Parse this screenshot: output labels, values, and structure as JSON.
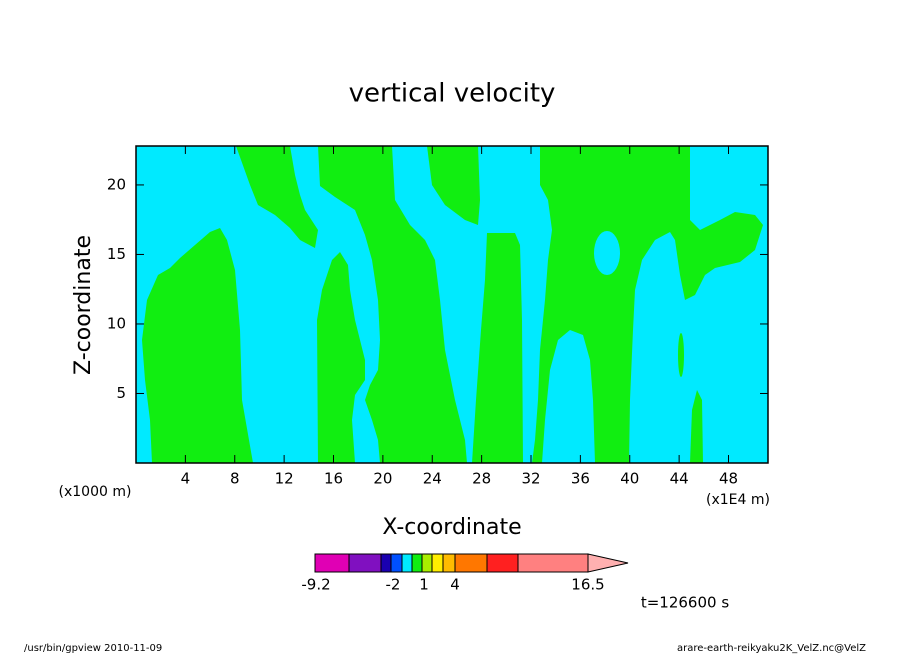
{
  "chart_data": {
    "type": "contour",
    "title": "vertical velocity",
    "xlabel": "X-coordinate",
    "ylabel": "Z-coordinate",
    "x_unit": "(x1000 m)",
    "x_unit_right": "(x1E4 m)",
    "xlim": [
      0,
      51.2
    ],
    "xticks": [
      4,
      8,
      12,
      16,
      20,
      24,
      28,
      32,
      36,
      40,
      44,
      48
    ],
    "ylim": [
      0,
      22.8
    ],
    "yticks": [
      5,
      10,
      15,
      20
    ],
    "field_colors": [
      "#00eaff",
      "#11ee11"
    ],
    "colorbar_colors": [
      "#e000b4",
      "#8010c0",
      "#1a00b0",
      "#0050ff",
      "#00eaff",
      "#11ee11",
      "#aaee00",
      "#ffee00",
      "#ffbb00",
      "#ff7700",
      "#ff2020",
      "#ff8080",
      "#ffb0b0"
    ],
    "colorbar_ticks": [
      -9.2,
      -2,
      1,
      4,
      16.5
    ],
    "time_label": "t=126600 s",
    "footer_left": "/usr/bin/gpview   2010-11-09",
    "footer_right": "arare-earth-reikyaku2K_VelZ.nc@VelZ"
  }
}
